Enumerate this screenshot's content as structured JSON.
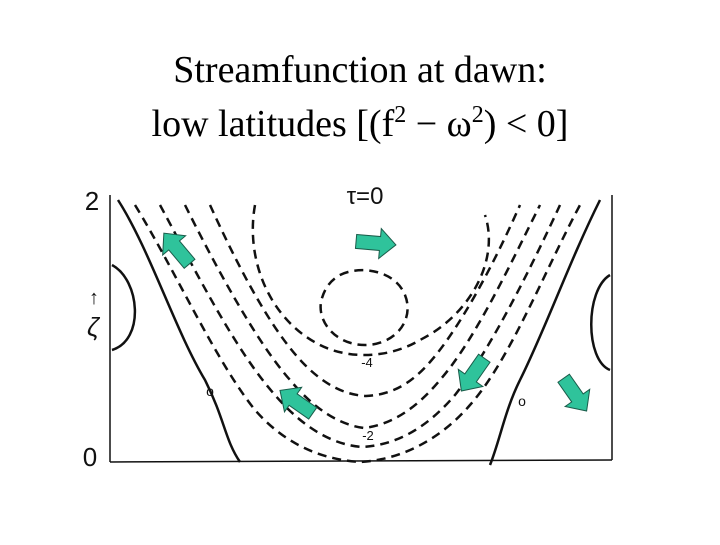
{
  "title": {
    "line1": "Streamfunction at dawn:",
    "line2": [
      "low latitudes [(f",
      "2",
      " − ω",
      "2",
      ") < 0]"
    ]
  },
  "figure": {
    "labels": {
      "y_top": "2",
      "y_bottom": "0",
      "tau": "τ=0",
      "arrow": "↑",
      "zeta": "ζ",
      "minus4": "-4",
      "minus2": "-2",
      "zero_left": "o",
      "zero_right": "o"
    }
  }
}
